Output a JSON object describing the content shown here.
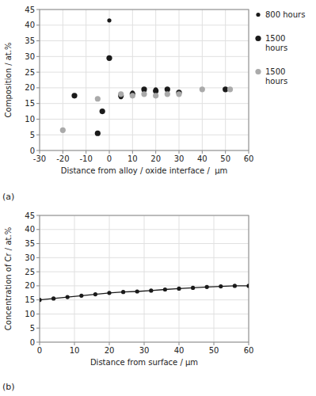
{
  "chart_data": [
    {
      "type": "scatter",
      "annotations": [
        "(a)"
      ],
      "xlabel": "Distance from alloy / oxide interface /  μm",
      "ylabel": "Composition / at.%",
      "xlim": [
        -30,
        60
      ],
      "ylim": [
        0,
        45
      ],
      "xticks": [
        -30,
        -20,
        -10,
        0,
        10,
        20,
        30,
        40,
        50,
        60
      ],
      "yticks": [
        0,
        5,
        10,
        15,
        20,
        25,
        30,
        35,
        40,
        45
      ],
      "grid": true,
      "legend": "right",
      "series": [
        {
          "name": "800 hours",
          "color": "#1a1a1a",
          "marker": "small-circle",
          "x": [
            -5,
            -3,
            0,
            5,
            10,
            15,
            20,
            25,
            30
          ],
          "values": [
            5.5,
            12.5,
            41.5,
            17.0,
            18.5,
            19.0,
            19.5,
            18.0,
            18.0
          ]
        },
        {
          "name": "1500\nhours",
          "color": "#1a1a1a",
          "marker": "circle",
          "x": [
            -15,
            -5,
            -3,
            0,
            5,
            10,
            15,
            20,
            25,
            30,
            50
          ],
          "values": [
            17.5,
            5.5,
            12.5,
            29.5,
            17.5,
            18.0,
            19.5,
            19.0,
            19.5,
            18.5,
            19.5
          ]
        },
        {
          "name": "1500\nhours",
          "color": "#aaaaaa",
          "marker": "circle",
          "x": [
            -20,
            -5,
            5,
            10,
            15,
            20,
            25,
            30,
            40,
            52
          ],
          "values": [
            6.5,
            16.5,
            18.0,
            17.5,
            18.0,
            17.5,
            18.0,
            18.0,
            19.5,
            19.5
          ]
        }
      ]
    },
    {
      "type": "line",
      "annotations": [
        "(b)"
      ],
      "xlabel": "Distance from surface / μm",
      "ylabel": "Concentration of Cr / at.%",
      "xlim": [
        0,
        60
      ],
      "ylim": [
        0,
        45
      ],
      "xticks": [
        0,
        10,
        20,
        30,
        40,
        50,
        60
      ],
      "yticks": [
        0,
        5,
        10,
        15,
        20,
        25,
        30,
        35,
        40,
        45
      ],
      "grid": true,
      "color": "#1a1a1a",
      "marker": "small-circle",
      "x": [
        0,
        4,
        8,
        12,
        16,
        20,
        24,
        28,
        32,
        36,
        40,
        44,
        48,
        52,
        56,
        60
      ],
      "values": [
        15.0,
        15.5,
        16.0,
        16.5,
        17.0,
        17.5,
        17.8,
        18.0,
        18.3,
        18.7,
        19.0,
        19.3,
        19.6,
        19.8,
        20.0,
        20.0
      ]
    }
  ]
}
